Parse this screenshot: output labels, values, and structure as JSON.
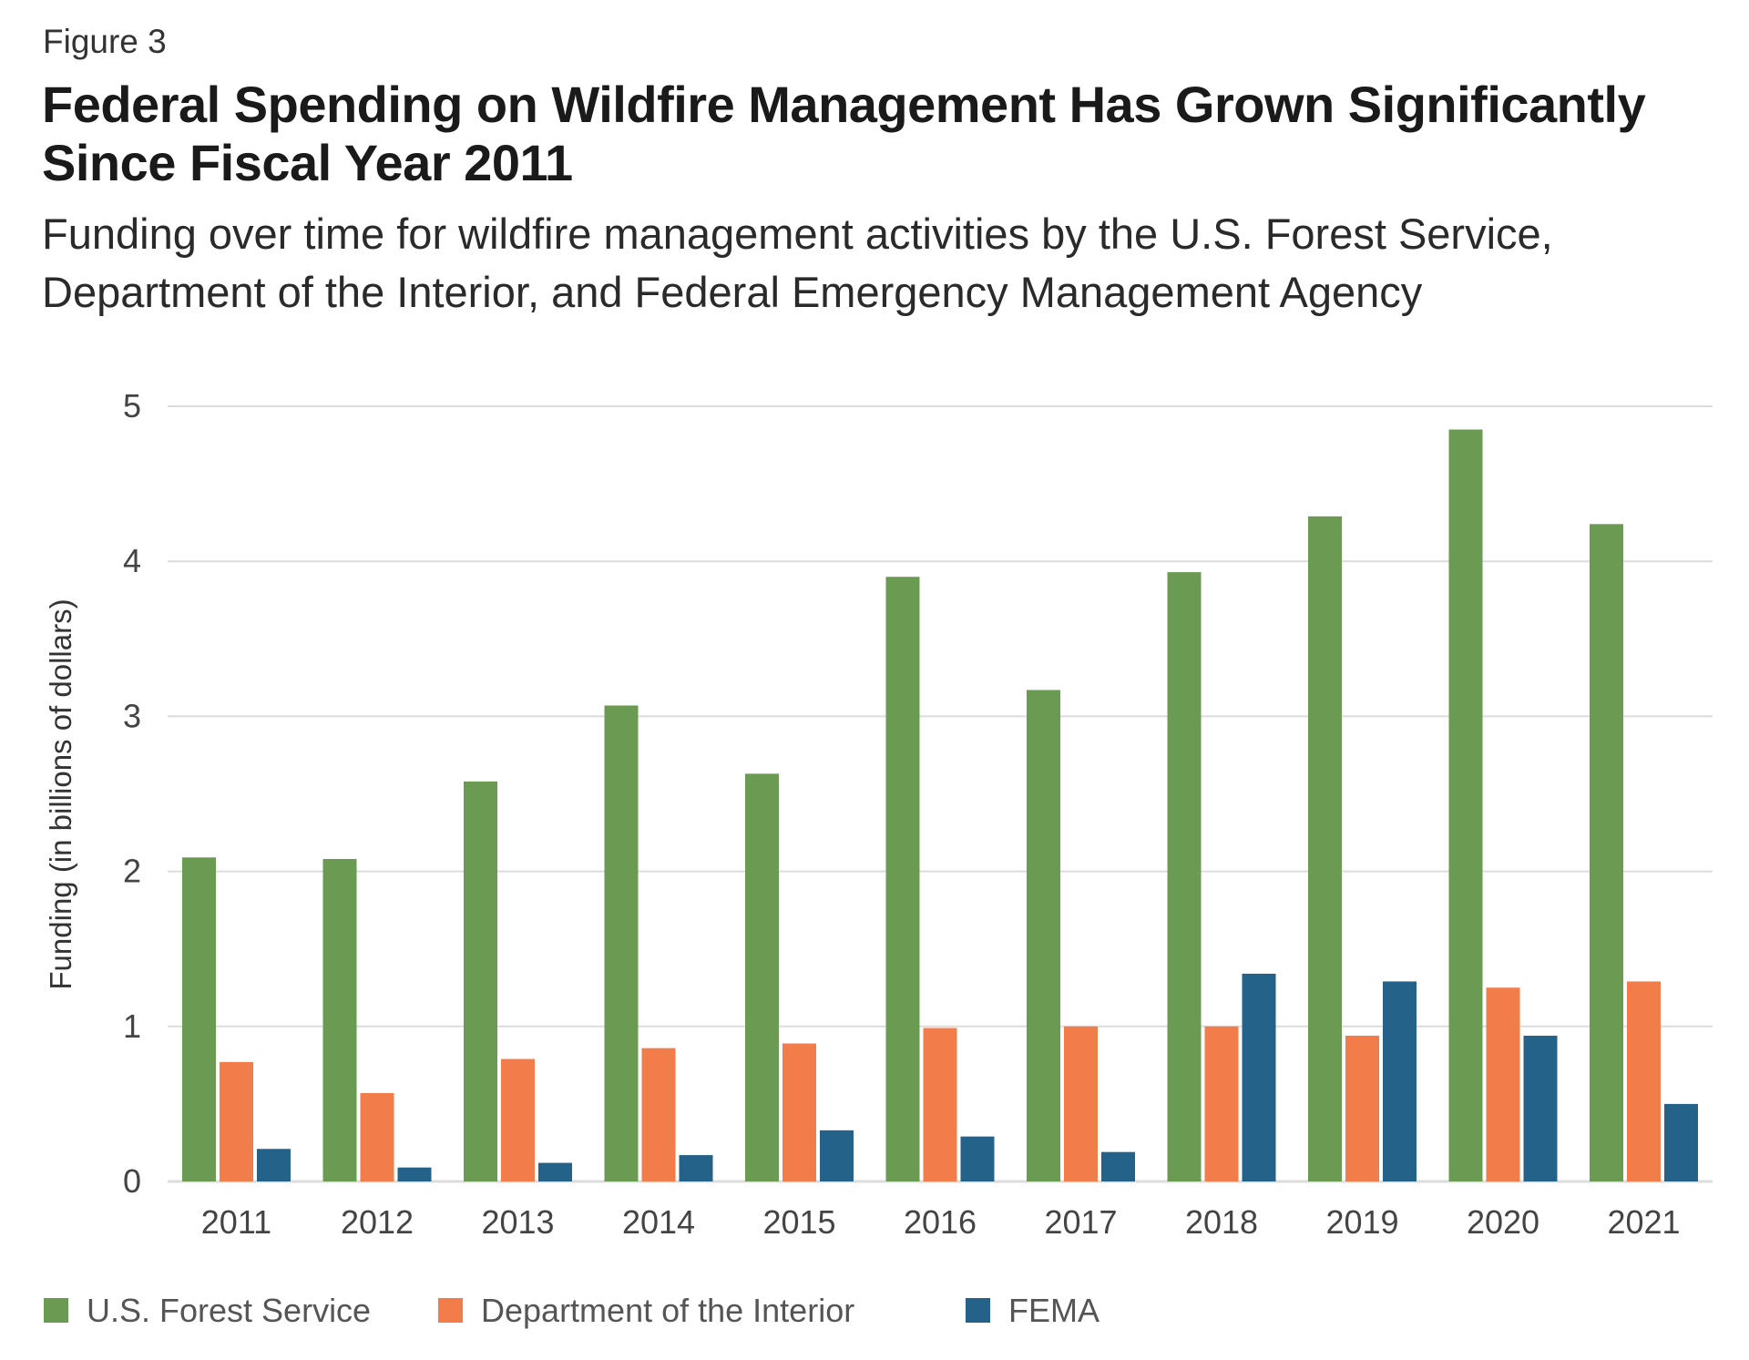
{
  "figure_label": "Figure 3",
  "title_lines": [
    "Federal Spending on Wildfire Management Has Grown Significantly",
    "Since Fiscal Year 2011"
  ],
  "subtitle_lines": [
    "Funding over time for wildfire management activities by the U.S. Forest Service,",
    "Department of the Interior, and Federal Emergency Management Agency"
  ],
  "chart_data": {
    "type": "bar",
    "title": "Federal Spending on Wildfire Management Has Grown Significantly Since Fiscal Year 2011",
    "xlabel": "",
    "ylabel": "Funding (in billions of dollars)",
    "ylim": [
      0,
      5
    ],
    "yticks": [
      0,
      1,
      2,
      3,
      4,
      5
    ],
    "grid": true,
    "legend_position": "bottom-left",
    "categories": [
      "2011",
      "2012",
      "2013",
      "2014",
      "2015",
      "2016",
      "2017",
      "2018",
      "2019",
      "2020",
      "2021"
    ],
    "series": [
      {
        "name": "U.S. Forest Service",
        "color": "#6b9b52",
        "values": [
          2.09,
          2.08,
          2.58,
          3.07,
          2.63,
          3.9,
          3.17,
          3.93,
          4.29,
          4.85,
          4.24
        ]
      },
      {
        "name": "Department of the Interior",
        "color": "#f27c4a",
        "values": [
          0.77,
          0.57,
          0.79,
          0.86,
          0.89,
          0.99,
          1.0,
          1.0,
          0.94,
          1.25,
          1.29
        ]
      },
      {
        "name": "FEMA",
        "color": "#25628a",
        "values": [
          0.21,
          0.09,
          0.12,
          0.17,
          0.33,
          0.29,
          0.19,
          1.34,
          1.29,
          0.94,
          0.5
        ]
      }
    ]
  }
}
